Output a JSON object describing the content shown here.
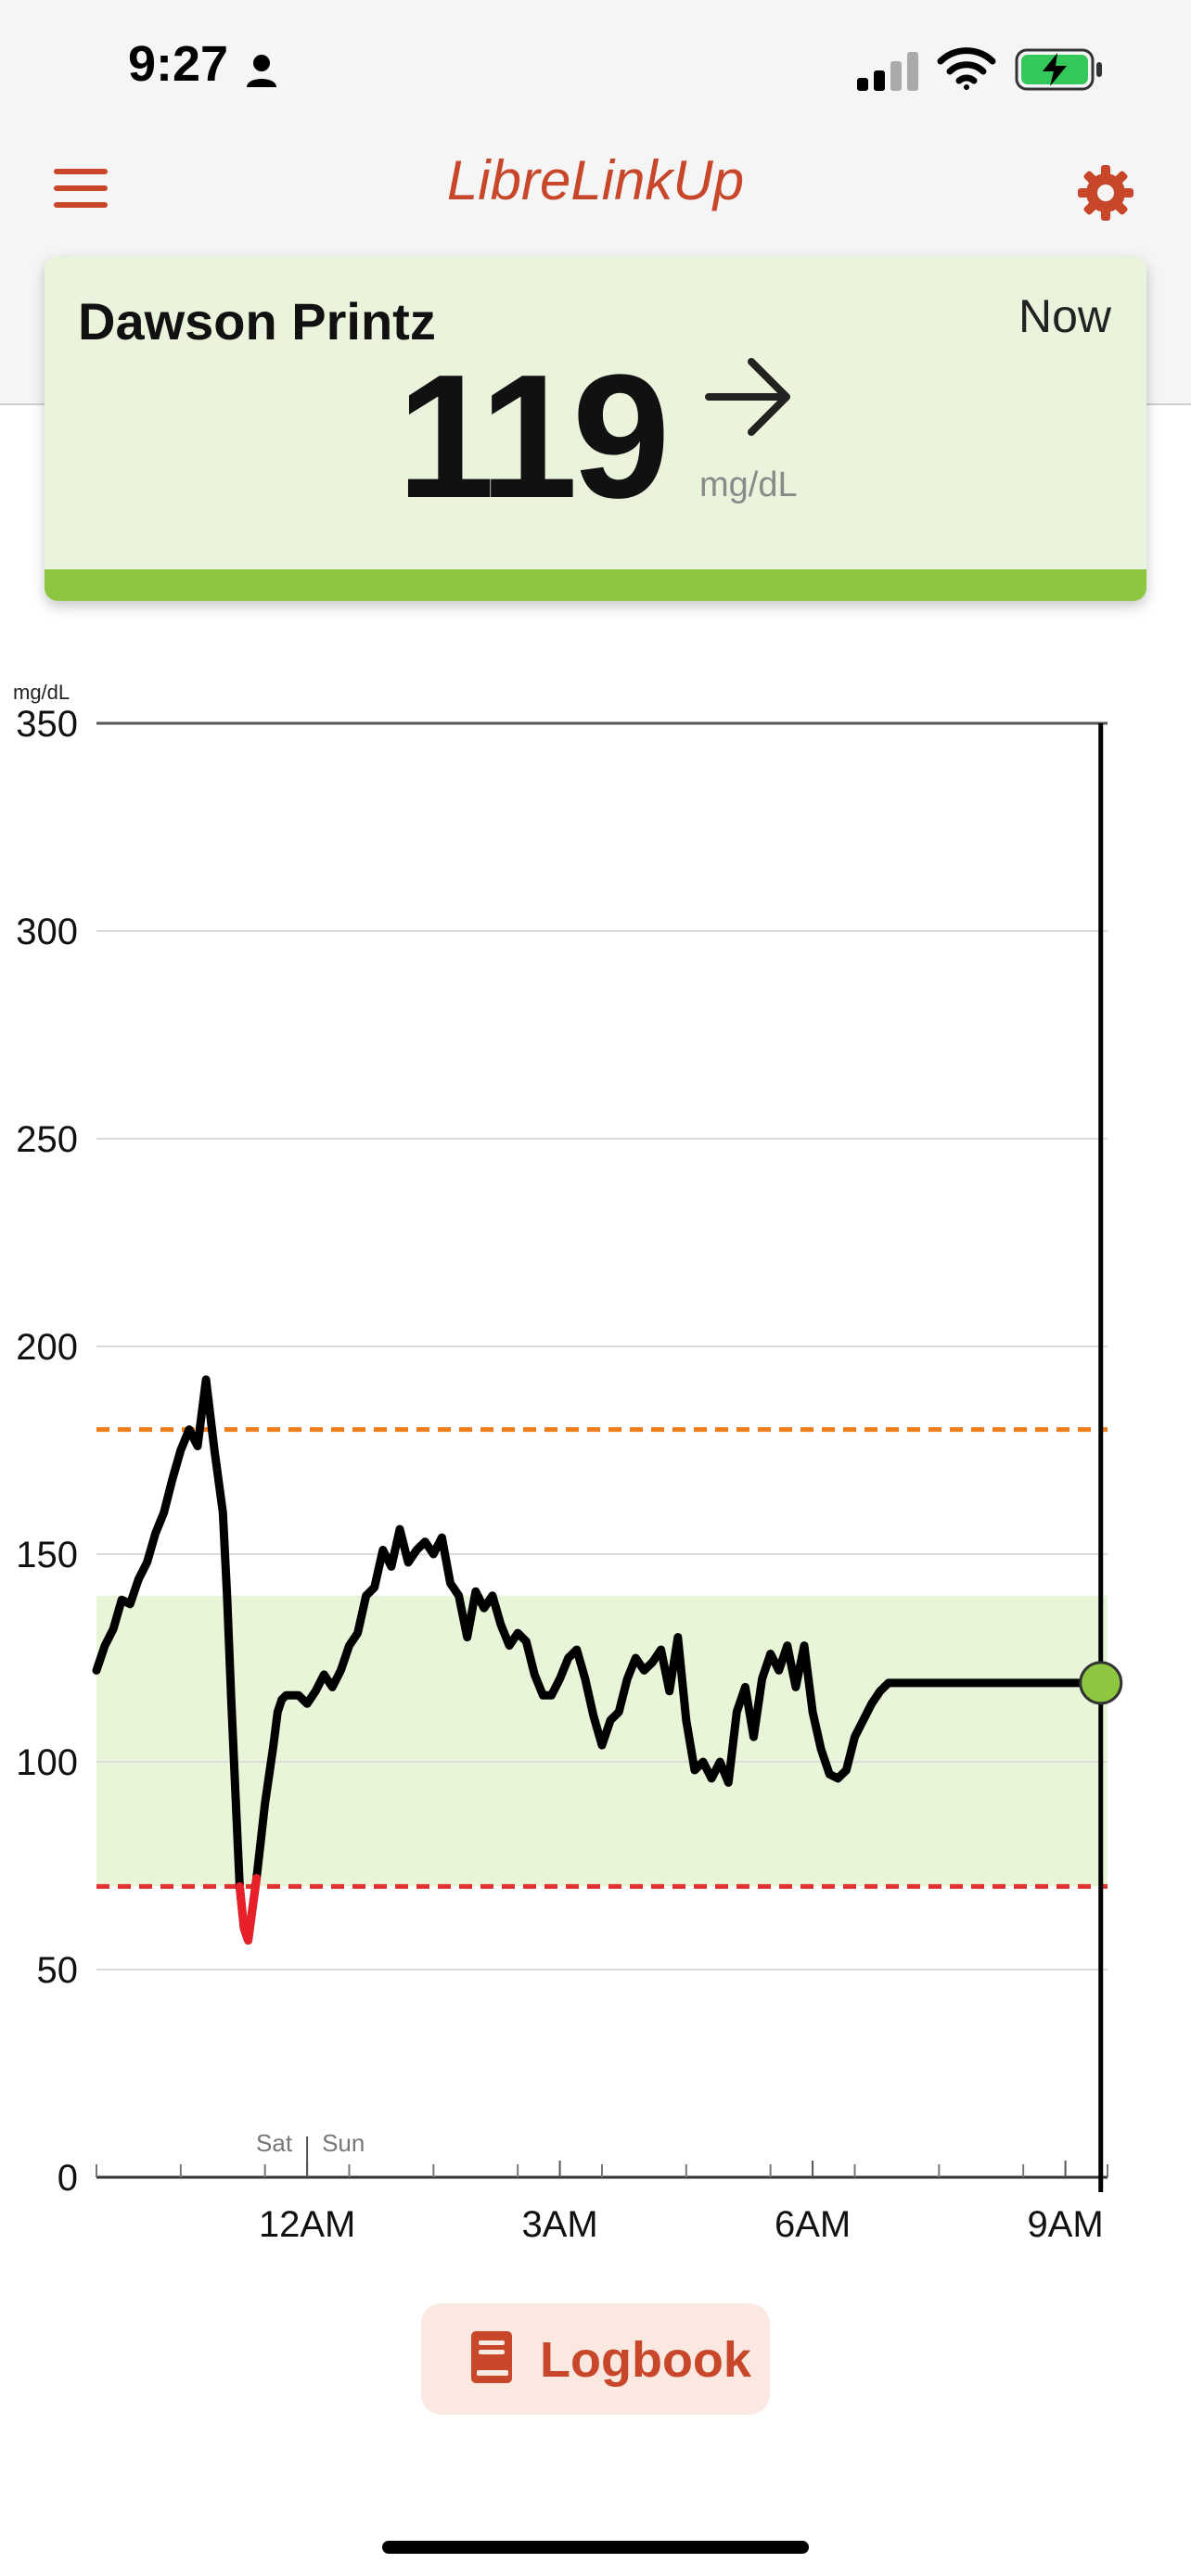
{
  "status_bar": {
    "time": "9:27"
  },
  "header": {
    "title": "LibreLinkUp"
  },
  "card": {
    "patient_name": "Dawson Printz",
    "time_label": "Now",
    "glucose_value": "119",
    "unit": "mg/dL",
    "trend": "steady"
  },
  "chart_data": {
    "type": "line",
    "ylabel": "mg/dL",
    "ylim": [
      0,
      350
    ],
    "yticks": [
      350,
      300,
      250,
      200,
      150,
      100,
      50,
      0
    ],
    "x_tick_labels": [
      "12AM",
      "3AM",
      "6AM",
      "9AM"
    ],
    "x_tick_hours": [
      0,
      3,
      6,
      9
    ],
    "day_labels": [
      "Sat",
      "Sun"
    ],
    "xlim_hours": [
      -2.5,
      9.5
    ],
    "high_threshold": 180,
    "low_threshold": 70,
    "target_range": [
      70,
      140
    ],
    "series": [
      {
        "x": [
          -2.5,
          -2.4,
          -2.3,
          -2.2,
          -2.1,
          -2.0,
          -1.9,
          -1.8,
          -1.7,
          -1.6,
          -1.5,
          -1.4,
          -1.3,
          -1.2,
          -1.1,
          -1.0,
          -0.95,
          -0.9,
          -0.85,
          -0.8,
          -0.75,
          -0.7,
          -0.6,
          -0.5,
          -0.4,
          -0.35,
          -0.3,
          -0.25,
          -0.2,
          -0.15,
          -0.1,
          0.0,
          0.1,
          0.2,
          0.3,
          0.4,
          0.5,
          0.6,
          0.7,
          0.8,
          0.9,
          1.0,
          1.1,
          1.2,
          1.3,
          1.4,
          1.5,
          1.6,
          1.7,
          1.8,
          1.9,
          2.0,
          2.1,
          2.2,
          2.3,
          2.4,
          2.5,
          2.6,
          2.7,
          2.8,
          2.9,
          3.0,
          3.1,
          3.2,
          3.3,
          3.4,
          3.5,
          3.6,
          3.7,
          3.8,
          3.9,
          4.0,
          4.1,
          4.2,
          4.3,
          4.4,
          4.5,
          4.6,
          4.7,
          4.8,
          4.9,
          5.0,
          5.1,
          5.2,
          5.3,
          5.4,
          5.5,
          5.6,
          5.7,
          5.8,
          5.9,
          6.0,
          6.1,
          6.2,
          6.3,
          6.4,
          6.5,
          6.6,
          6.7,
          6.8,
          6.9,
          7.0,
          7.1,
          7.2,
          7.3,
          7.4,
          7.5,
          7.6,
          7.7,
          7.8,
          7.9,
          8.0,
          8.1,
          8.2,
          8.3,
          8.4,
          8.5,
          8.6,
          8.7,
          8.8,
          8.9,
          9.0,
          9.1,
          9.2,
          9.3,
          9.4,
          9.5
        ],
        "y": [
          122,
          128,
          132,
          139,
          138,
          144,
          148,
          155,
          160,
          168,
          175,
          180,
          176,
          192,
          175,
          160,
          140,
          115,
          92,
          70,
          60,
          57,
          72,
          90,
          104,
          112,
          115,
          116,
          116,
          116,
          116,
          114,
          117,
          121,
          118,
          122,
          128,
          131,
          140,
          142,
          151,
          147,
          156,
          148,
          151,
          153,
          150,
          154,
          143,
          140,
          130,
          141,
          137,
          140,
          133,
          128,
          131,
          129,
          121,
          116,
          116,
          120,
          125,
          127,
          120,
          111,
          104,
          110,
          112,
          120,
          125,
          122,
          124,
          127,
          117,
          130,
          110,
          98,
          100,
          96,
          100,
          95,
          112,
          118,
          106,
          120,
          126,
          122,
          128,
          118,
          128,
          112,
          103,
          97,
          96,
          98,
          106,
          110,
          114,
          117,
          119,
          119,
          119,
          119,
          119,
          119,
          119,
          119,
          119,
          119,
          119,
          119,
          119,
          119,
          119,
          119,
          119,
          119,
          119,
          119,
          119,
          119,
          119,
          119,
          119,
          119,
          119
        ]
      }
    ],
    "current_value": 119
  },
  "footer": {
    "logbook_label": "Logbook"
  },
  "colors": {
    "accent": "#c8462a",
    "card_bg": "#eaf4dc",
    "in_range": "#8dc63f",
    "high_line": "#ee7d1a",
    "low_line": "#e03030",
    "target_band": "#e8f5d8"
  }
}
